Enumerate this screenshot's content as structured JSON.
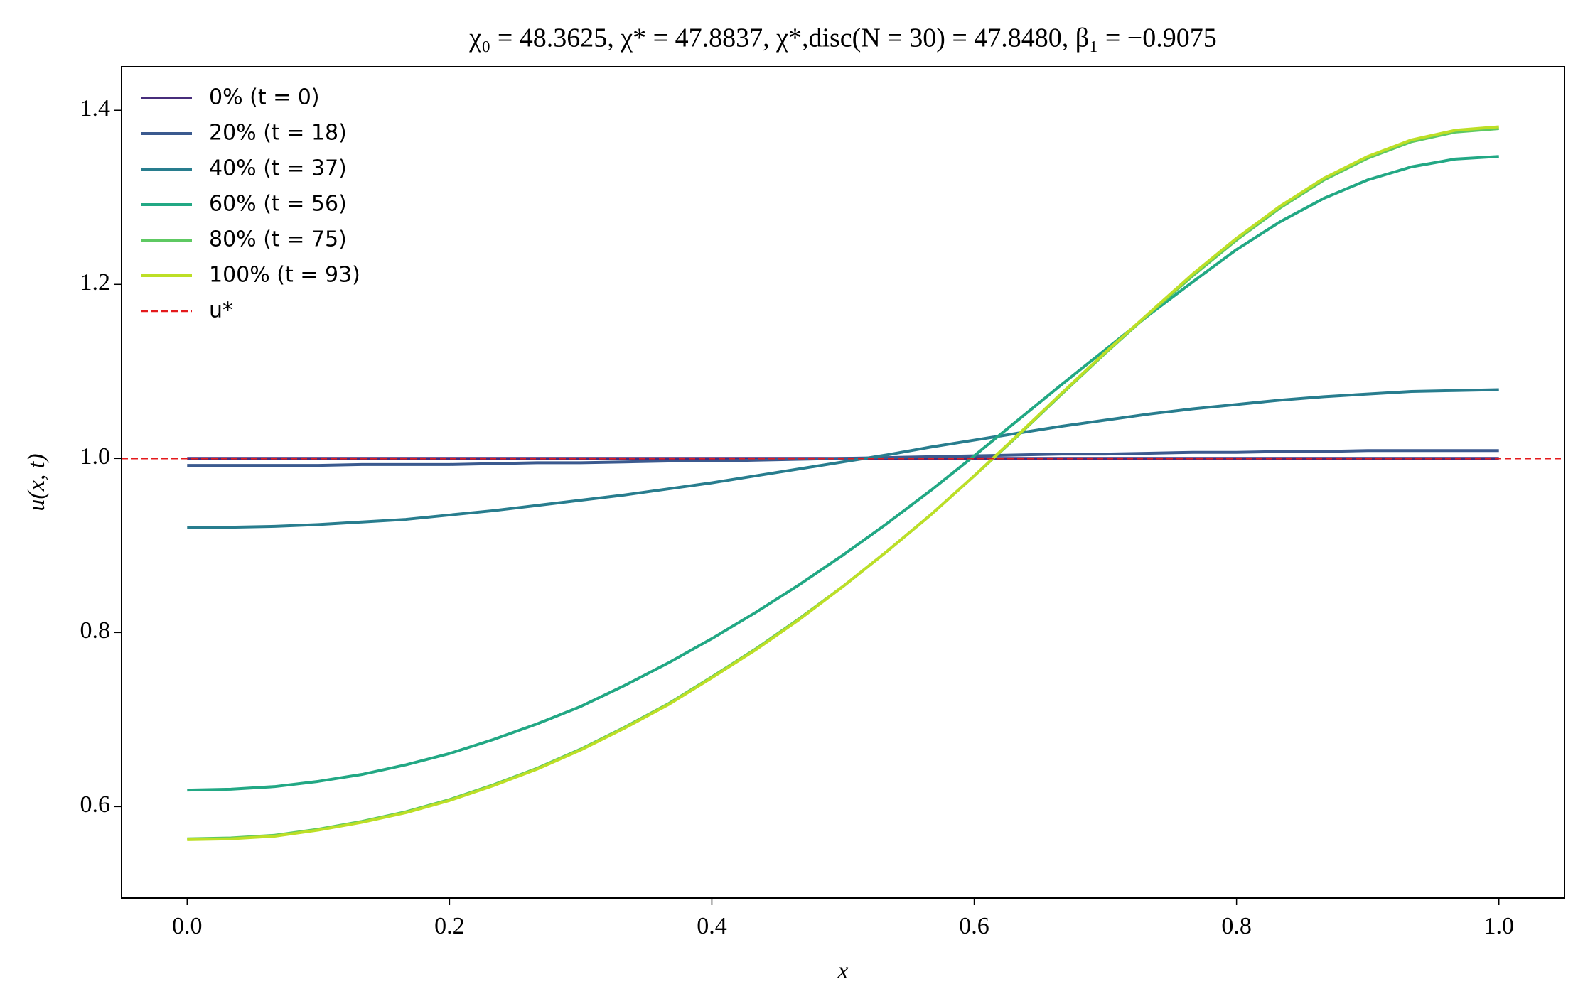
{
  "chart_data": {
    "type": "line",
    "title": "χ₀ = 48.3625,  χ* = 47.8837,  χ*,disc(N = 30) = 47.8480,  β₁ = −0.9075",
    "x_label": "x",
    "y_label": "u(x, t)",
    "x": [
      0,
      0.0333,
      0.0667,
      0.1,
      0.1333,
      0.1667,
      0.2,
      0.2333,
      0.2667,
      0.3,
      0.3333,
      0.3667,
      0.4,
      0.4333,
      0.4667,
      0.5,
      0.5333,
      0.5667,
      0.6,
      0.6333,
      0.6667,
      0.7,
      0.7333,
      0.7667,
      0.8,
      0.8333,
      0.8667,
      0.9,
      0.9333,
      0.9667,
      1
    ],
    "series": [
      {
        "name": "0% (t = 0)",
        "color": "#472d7b",
        "values": [
          1,
          1,
          1,
          1,
          1,
          1,
          1,
          1,
          1,
          1,
          1,
          1,
          1,
          1,
          1,
          1,
          1,
          1,
          1,
          1,
          1,
          1,
          1,
          1,
          1,
          1,
          1,
          1,
          1,
          1,
          1
        ]
      },
      {
        "name": "20% (t = 18)",
        "color": "#3b5a8f",
        "values": [
          0.992,
          0.992,
          0.992,
          0.992,
          0.993,
          0.993,
          0.993,
          0.994,
          0.995,
          0.995,
          0.996,
          0.997,
          0.997,
          0.998,
          0.999,
          1.0,
          1.001,
          1.002,
          1.003,
          1.004,
          1.005,
          1.005,
          1.006,
          1.007,
          1.007,
          1.008,
          1.008,
          1.009,
          1.009,
          1.009,
          1.009
        ]
      },
      {
        "name": "40% (t = 37)",
        "color": "#287d8e",
        "values": [
          0.921,
          0.921,
          0.922,
          0.924,
          0.927,
          0.93,
          0.935,
          0.94,
          0.946,
          0.952,
          0.958,
          0.965,
          0.972,
          0.98,
          0.988,
          0.996,
          1.004,
          1.013,
          1.021,
          1.029,
          1.037,
          1.044,
          1.051,
          1.057,
          1.062,
          1.067,
          1.071,
          1.074,
          1.077,
          1.078,
          1.079
        ]
      },
      {
        "name": "60% (t = 56)",
        "color": "#22a884",
        "values": [
          0.619,
          0.62,
          0.623,
          0.629,
          0.637,
          0.648,
          0.661,
          0.677,
          0.695,
          0.715,
          0.739,
          0.765,
          0.793,
          0.823,
          0.855,
          0.889,
          0.925,
          0.963,
          1.003,
          1.044,
          1.085,
          1.125,
          1.165,
          1.203,
          1.24,
          1.272,
          1.299,
          1.32,
          1.335,
          1.344,
          1.347
        ]
      },
      {
        "name": "80% (t = 75)",
        "color": "#5ec962",
        "values": [
          0.563,
          0.564,
          0.567,
          0.574,
          0.583,
          0.594,
          0.608,
          0.625,
          0.644,
          0.666,
          0.691,
          0.718,
          0.749,
          0.781,
          0.816,
          0.853,
          0.893,
          0.935,
          0.98,
          1.026,
          1.074,
          1.121,
          1.166,
          1.21,
          1.251,
          1.288,
          1.32,
          1.345,
          1.364,
          1.375,
          1.379
        ]
      },
      {
        "name": "100% (t = 93)",
        "color": "#bddf26",
        "values": [
          0.562,
          0.563,
          0.566,
          0.573,
          0.582,
          0.593,
          0.607,
          0.624,
          0.643,
          0.665,
          0.69,
          0.717,
          0.748,
          0.78,
          0.815,
          0.853,
          0.893,
          0.935,
          0.98,
          1.027,
          1.075,
          1.122,
          1.167,
          1.212,
          1.253,
          1.29,
          1.322,
          1.347,
          1.366,
          1.377,
          1.381
        ]
      }
    ],
    "reference_line": {
      "name": "u*",
      "value": 1,
      "color": "#e41a1c"
    },
    "xlim": [
      -0.05,
      1.05
    ],
    "xticks": [
      {
        "value": 0,
        "label": "0.0"
      },
      0.2,
      0.4,
      0.6,
      0.8,
      {
        "value": 1,
        "label": "1.0"
      }
    ],
    "ylim": [
      0.495,
      1.45
    ],
    "yticks": [
      0.6,
      0.8,
      {
        "value": 1,
        "label": "1.0"
      },
      1.2,
      1.4
    ],
    "grid": false,
    "legend": "upper left"
  }
}
